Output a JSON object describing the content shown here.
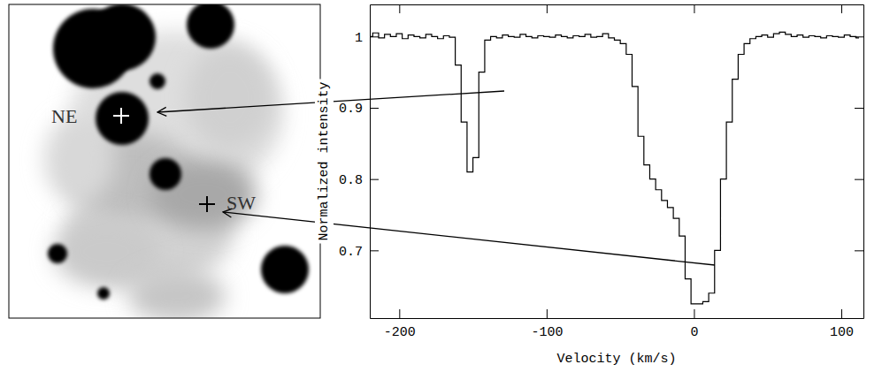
{
  "chart_data": {
    "type": "line",
    "x_label": "Velocity (km/s)",
    "y_label": "Normalized intensity",
    "x": [
      -220,
      -216,
      -212,
      -208,
      -204,
      -200,
      -196,
      -192,
      -188,
      -184,
      -180,
      -176,
      -172,
      -168,
      -164,
      -160,
      -156,
      -152,
      -148,
      -144,
      -140,
      -136,
      -132,
      -128,
      -124,
      -120,
      -116,
      -112,
      -108,
      -104,
      -100,
      -96,
      -92,
      -88,
      -84,
      -80,
      -76,
      -72,
      -68,
      -64,
      -60,
      -56,
      -52,
      -48,
      -44,
      -40,
      -36,
      -32,
      -28,
      -24,
      -20,
      -16,
      -12,
      -8,
      -4,
      0,
      4,
      8,
      12,
      16,
      20,
      24,
      28,
      32,
      36,
      40,
      44,
      48,
      52,
      56,
      60,
      64,
      68,
      72,
      76,
      80,
      84,
      88,
      92,
      96,
      100,
      104,
      108,
      112
    ],
    "values": [
      1.0,
      1.005,
      0.998,
      1.003,
      1.0,
      1.004,
      0.997,
      1.002,
      1.0,
      0.998,
      1.003,
      1.0,
      0.997,
      1.001,
      0.999,
      0.96,
      0.88,
      0.81,
      0.83,
      0.95,
      0.995,
      1.0,
      0.998,
      1.002,
      1.0,
      0.999,
      1.003,
      1.0,
      0.998,
      1.001,
      1.0,
      0.999,
      1.002,
      1.0,
      0.998,
      1.001,
      1.0,
      1.003,
      0.999,
      1.0,
      1.004,
      0.998,
      0.995,
      0.99,
      0.975,
      0.93,
      0.86,
      0.82,
      0.8,
      0.785,
      0.77,
      0.76,
      0.745,
      0.72,
      0.66,
      0.625,
      0.625,
      0.628,
      0.64,
      0.7,
      0.8,
      0.88,
      0.94,
      0.975,
      0.99,
      0.997,
      1.0,
      1.002,
      0.999,
      1.004,
      1.006,
      1.003,
      1.0,
      1.002,
      0.999,
      1.001,
      1.0,
      0.998,
      1.001,
      1.0,
      0.999,
      1.002,
      1.0,
      0.998
    ],
    "color": "#000000",
    "line_style": "step",
    "xlim": [
      -220,
      115
    ],
    "ylim": [
      0.605,
      1.045
    ],
    "xticks": [
      -200,
      -100,
      0,
      100
    ],
    "yticks": [
      0.7,
      0.8,
      0.9,
      1
    ],
    "annotations": [
      {
        "text": "NE"
      },
      {
        "text": "SW"
      }
    ]
  }
}
